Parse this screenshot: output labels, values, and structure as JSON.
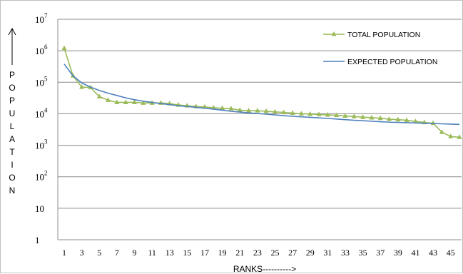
{
  "chart_data": {
    "type": "line",
    "xlabel": "RANKS---------->",
    "ylabel": "POPULATION",
    "y_scale": "log",
    "ylim": [
      1,
      10000000
    ],
    "xlim": [
      1,
      46
    ],
    "grid": true,
    "legend_position": "top-right",
    "x_tick_labels": [
      "1",
      "3",
      "5",
      "7",
      "9",
      "11",
      "13",
      "15",
      "17",
      "19",
      "21",
      "23",
      "25",
      "27",
      "29",
      "31",
      "33",
      "35",
      "37",
      "39",
      "41",
      "43",
      "45"
    ],
    "y_tick_labels": [
      {
        "value": 1,
        "base": "1",
        "exp": ""
      },
      {
        "value": 10,
        "base": "10",
        "exp": ""
      },
      {
        "value": 100,
        "base": "10",
        "exp": "2"
      },
      {
        "value": 1000,
        "base": "10",
        "exp": "3"
      },
      {
        "value": 10000,
        "base": "10",
        "exp": "4"
      },
      {
        "value": 100000,
        "base": "10",
        "exp": "5"
      },
      {
        "value": 1000000,
        "base": "10",
        "exp": "6"
      },
      {
        "value": 10000000,
        "base": "10",
        "exp": "7"
      }
    ],
    "x": [
      1,
      2,
      3,
      4,
      5,
      6,
      7,
      8,
      9,
      10,
      11,
      12,
      13,
      14,
      15,
      16,
      17,
      18,
      19,
      20,
      21,
      22,
      23,
      24,
      25,
      26,
      27,
      28,
      29,
      30,
      31,
      32,
      33,
      34,
      35,
      36,
      37,
      38,
      39,
      40,
      41,
      42,
      43,
      44,
      45,
      46
    ],
    "series": [
      {
        "name": "TOTAL POPULATION",
        "color": "#9bbb59",
        "marker": "triangle",
        "values": [
          1200000,
          160000,
          70000,
          68000,
          35000,
          27000,
          23000,
          23000,
          23000,
          22000,
          22000,
          22000,
          21000,
          19000,
          18000,
          17000,
          16500,
          15500,
          15000,
          14500,
          13000,
          12500,
          12500,
          12000,
          11500,
          11000,
          10500,
          10000,
          9800,
          9500,
          9200,
          9000,
          8500,
          8200,
          7800,
          7500,
          7200,
          6700,
          6500,
          6200,
          5700,
          5300,
          5000,
          2600,
          1900,
          1800
        ]
      },
      {
        "name": "EXPECTED POPULATION",
        "color": "#4f81bd",
        "marker": "none",
        "values": [
          380000,
          160000,
          95000,
          70000,
          55000,
          45000,
          38000,
          32000,
          28000,
          25000,
          23000,
          21000,
          19500,
          18000,
          17000,
          16000,
          15000,
          14000,
          13000,
          12000,
          11300,
          10700,
          10200,
          9700,
          9200,
          8700,
          8300,
          8000,
          7700,
          7400,
          7100,
          6800,
          6500,
          6200,
          6000,
          5800,
          5600,
          5400,
          5300,
          5200,
          5100,
          5000,
          4900,
          4800,
          4700,
          4600
        ]
      }
    ]
  }
}
